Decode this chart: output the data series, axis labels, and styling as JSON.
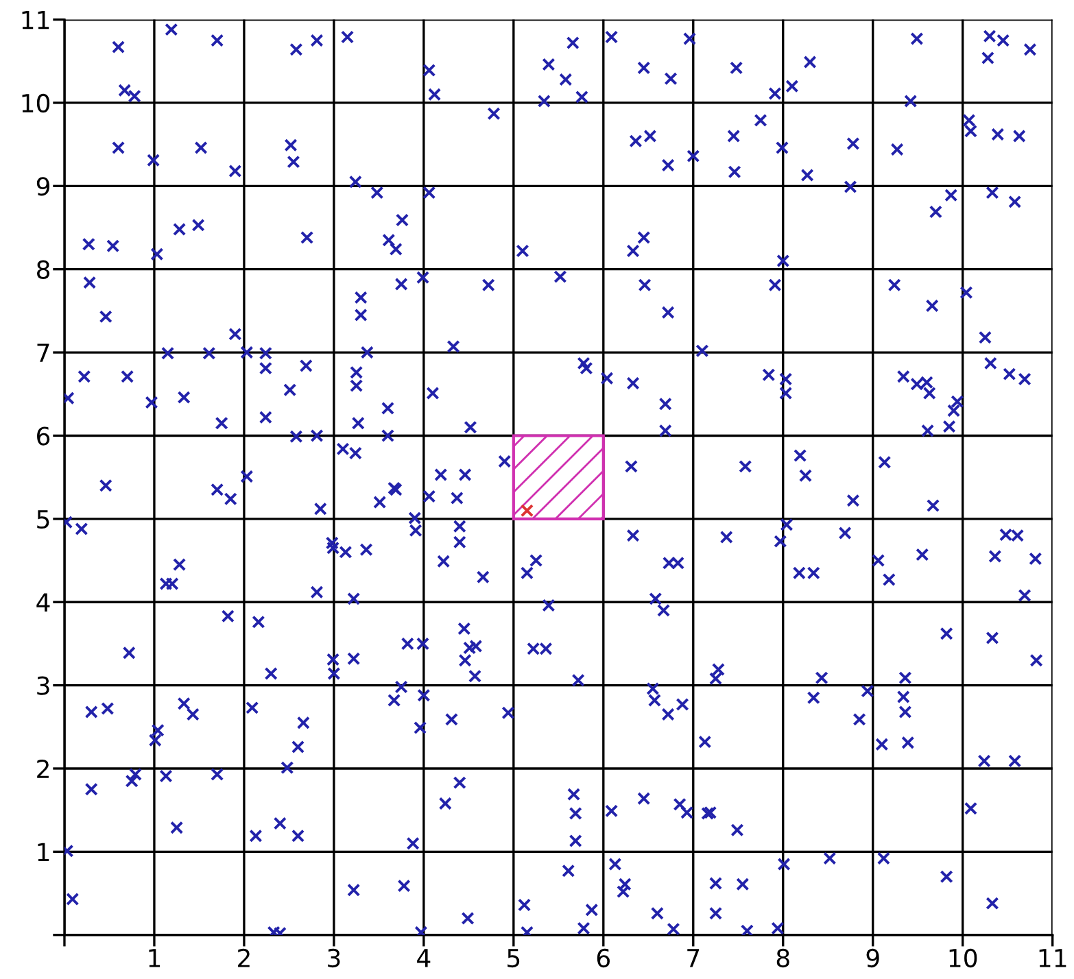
{
  "chart_data": {
    "type": "scatter",
    "marker": "cross",
    "grid": true,
    "xlim": [
      0,
      11
    ],
    "ylim": [
      0,
      11
    ],
    "xticks": [
      {
        "value": 0,
        "label": null
      },
      1,
      2,
      3,
      4,
      5,
      6,
      7,
      8,
      9,
      10,
      11
    ],
    "yticks": [
      {
        "value": 0,
        "label": null
      },
      1,
      2,
      3,
      4,
      5,
      6,
      7,
      8,
      9,
      10,
      11
    ],
    "series": [
      {
        "color": "#2222aa",
        "x": [
          0.6,
          0.67,
          0.78,
          1.19,
          1.7,
          2.58,
          2.81,
          3.15,
          4.06,
          4.12,
          4.78,
          5.39,
          5.66,
          5.58,
          5.34,
          5.76,
          6.09,
          6.45,
          6.75,
          6.96,
          7.48,
          8.3,
          8.1,
          7.91,
          9.49,
          9.42,
          10.3,
          10.45,
          10.28,
          10.75,
          0.6,
          0.99,
          1.52,
          1.9,
          2.52,
          2.55,
          3.24,
          3.48,
          4.06,
          6.36,
          6.52,
          6.72,
          7.0,
          7.75,
          7.45,
          7.46,
          7.99,
          8.27,
          8.78,
          8.75,
          9.27,
          10.07,
          10.09,
          10.39,
          10.63,
          9.87,
          9.7,
          10.33,
          10.58,
          0.27,
          0.54,
          0.28,
          0.46,
          1.03,
          1.28,
          1.49,
          2.7,
          3.76,
          3.61,
          3.69,
          5.1,
          6.33,
          6.45,
          8.0,
          7.91,
          3.3,
          3.3,
          1.9,
          3.75,
          3.99,
          4.72,
          5.52,
          6.46,
          6.72,
          4.33,
          7.1,
          3.37,
          10.04,
          9.24,
          9.66,
          10.25,
          0.04,
          0.22,
          0.7,
          0.97,
          1.15,
          1.33,
          1.61,
          1.75,
          2.03,
          2.24,
          2.24,
          2.51,
          2.69,
          2.24,
          2.58,
          2.81,
          3.25,
          3.25,
          3.27,
          3.1,
          3.24,
          3.6,
          3.6,
          4.1,
          4.52,
          5.81,
          5.78,
          6.04,
          6.33,
          6.69,
          6.69,
          7.84,
          8.03,
          8.03,
          9.34,
          9.49,
          9.6,
          9.63,
          9.94,
          9.9,
          9.85,
          9.61,
          10.31,
          10.52,
          10.69,
          8.19,
          8.25,
          9.13,
          7.58,
          6.31,
          4.19,
          4.46,
          4.9,
          3.67,
          0.46,
          1.7,
          1.85,
          2.03,
          0.02,
          0.19,
          2.85,
          2.98,
          2.99,
          3.13,
          1.28,
          1.13,
          1.2,
          2.81,
          3.22,
          1.82,
          2.16,
          0.72,
          2.3,
          2.99,
          3.0,
          3.22,
          0.3,
          0.48,
          1.33,
          1.43,
          1.04,
          1.01,
          2.09,
          2.66,
          2.6,
          2.48,
          0.3,
          0.75,
          0.79,
          1.13,
          1.7,
          1.25,
          2.13,
          2.4,
          2.6,
          0.03,
          0.09,
          2.33,
          2.4,
          3.22,
          3.51,
          3.69,
          4.06,
          4.37,
          3.9,
          3.91,
          4.4,
          4.4,
          4.22,
          4.66,
          3.36,
          5.15,
          5.25,
          6.33,
          6.73,
          6.83,
          5.39,
          6.58,
          6.67,
          3.82,
          3.99,
          4.45,
          4.58,
          4.51,
          4.46,
          4.57,
          5.22,
          5.36,
          5.72,
          3.75,
          3.67,
          4.0,
          3.96,
          4.31,
          4.94,
          6.55,
          6.57,
          6.72,
          6.88,
          7.13,
          4.4,
          4.24,
          3.88,
          5.67,
          5.69,
          5.69,
          6.09,
          6.45,
          6.85,
          6.93,
          7.16,
          3.78,
          5.61,
          6.13,
          6.24,
          6.22,
          4.49,
          5.12,
          5.15,
          3.97,
          5.87,
          5.78,
          6.6,
          6.78,
          8.78,
          9.67,
          7.37,
          8.04,
          7.97,
          8.18,
          8.34,
          8.69,
          9.06,
          9.18,
          9.55,
          10.36,
          10.48,
          10.61,
          10.81,
          10.69,
          9.82,
          10.33,
          10.82,
          7.28,
          7.25,
          8.43,
          8.34,
          8.94,
          8.85,
          9.36,
          9.34,
          9.36,
          9.1,
          9.39,
          10.24,
          10.58,
          10.09,
          7.19,
          7.49,
          8.01,
          8.52,
          9.12,
          9.82,
          10.33,
          7.25,
          7.55,
          7.25,
          7.6,
          7.94
        ],
        "values": [
          10.67,
          10.15,
          10.08,
          10.88,
          10.75,
          10.64,
          10.75,
          10.79,
          10.39,
          10.1,
          9.87,
          10.46,
          10.72,
          10.28,
          10.02,
          10.07,
          10.79,
          10.42,
          10.29,
          10.77,
          10.42,
          10.49,
          10.2,
          10.11,
          10.77,
          10.02,
          10.8,
          10.75,
          10.54,
          10.64,
          9.46,
          9.31,
          9.46,
          9.18,
          9.49,
          9.29,
          9.05,
          8.92,
          8.92,
          9.54,
          9.6,
          9.25,
          9.36,
          9.79,
          9.6,
          9.17,
          9.46,
          9.13,
          9.51,
          8.99,
          9.44,
          9.79,
          9.66,
          9.62,
          9.6,
          8.89,
          8.69,
          8.92,
          8.81,
          8.3,
          8.28,
          7.84,
          7.43,
          8.18,
          8.48,
          8.53,
          8.38,
          8.59,
          8.35,
          8.24,
          8.22,
          8.22,
          8.38,
          8.1,
          7.81,
          7.66,
          7.45,
          7.22,
          7.82,
          7.9,
          7.81,
          7.91,
          7.81,
          7.48,
          7.07,
          7.02,
          7.0,
          7.72,
          7.81,
          7.56,
          7.18,
          6.45,
          6.71,
          6.71,
          6.4,
          6.99,
          6.46,
          6.99,
          6.15,
          7.0,
          6.99,
          6.81,
          6.55,
          6.84,
          6.22,
          5.99,
          6.0,
          6.76,
          6.6,
          6.15,
          5.84,
          5.79,
          6.33,
          6.0,
          6.51,
          6.1,
          6.81,
          6.87,
          6.69,
          6.63,
          6.38,
          6.06,
          6.73,
          6.68,
          6.51,
          6.71,
          6.62,
          6.64,
          6.51,
          6.41,
          6.3,
          6.11,
          6.06,
          6.87,
          6.74,
          6.68,
          5.76,
          5.52,
          5.68,
          5.63,
          5.63,
          5.53,
          5.53,
          5.69,
          5.37,
          5.4,
          5.35,
          5.24,
          5.51,
          4.96,
          4.88,
          5.12,
          4.71,
          4.65,
          4.6,
          4.45,
          4.22,
          4.22,
          4.12,
          4.04,
          3.83,
          3.76,
          3.39,
          3.14,
          3.31,
          3.14,
          3.32,
          2.68,
          2.72,
          2.78,
          2.65,
          2.46,
          2.34,
          2.73,
          2.55,
          2.26,
          2.01,
          1.75,
          1.85,
          1.93,
          1.91,
          1.93,
          1.29,
          1.19,
          1.34,
          1.19,
          1.01,
          0.43,
          0.03,
          0.02,
          0.54,
          5.2,
          5.35,
          5.27,
          5.25,
          5.01,
          4.86,
          4.91,
          4.72,
          4.49,
          4.3,
          4.63,
          4.35,
          4.5,
          4.8,
          4.47,
          4.47,
          3.96,
          4.04,
          3.9,
          3.5,
          3.5,
          3.68,
          3.47,
          3.45,
          3.3,
          3.11,
          3.44,
          3.44,
          3.06,
          2.98,
          2.82,
          2.88,
          2.49,
          2.59,
          2.67,
          2.96,
          2.82,
          2.65,
          2.77,
          2.32,
          1.83,
          1.58,
          1.1,
          1.69,
          1.46,
          1.13,
          1.49,
          1.64,
          1.57,
          1.47,
          1.46,
          0.59,
          0.77,
          0.85,
          0.61,
          0.52,
          0.2,
          0.36,
          0.03,
          0.03,
          0.3,
          0.08,
          0.26,
          0.07,
          5.22,
          5.16,
          4.78,
          4.93,
          4.73,
          4.35,
          4.35,
          4.83,
          4.5,
          4.27,
          4.57,
          4.55,
          4.81,
          4.8,
          4.52,
          4.08,
          3.62,
          3.57,
          3.3,
          3.19,
          3.08,
          3.09,
          2.85,
          2.93,
          2.59,
          3.09,
          2.86,
          2.68,
          2.29,
          2.31,
          2.09,
          2.09,
          1.52,
          1.47,
          1.26,
          0.85,
          0.92,
          0.92,
          0.7,
          0.38,
          0.62,
          0.61,
          0.26,
          0.05,
          0.08
        ]
      },
      {
        "color": "#dd3333",
        "x": [
          5.15
        ],
        "values": [
          5.1
        ]
      }
    ]
  }
}
